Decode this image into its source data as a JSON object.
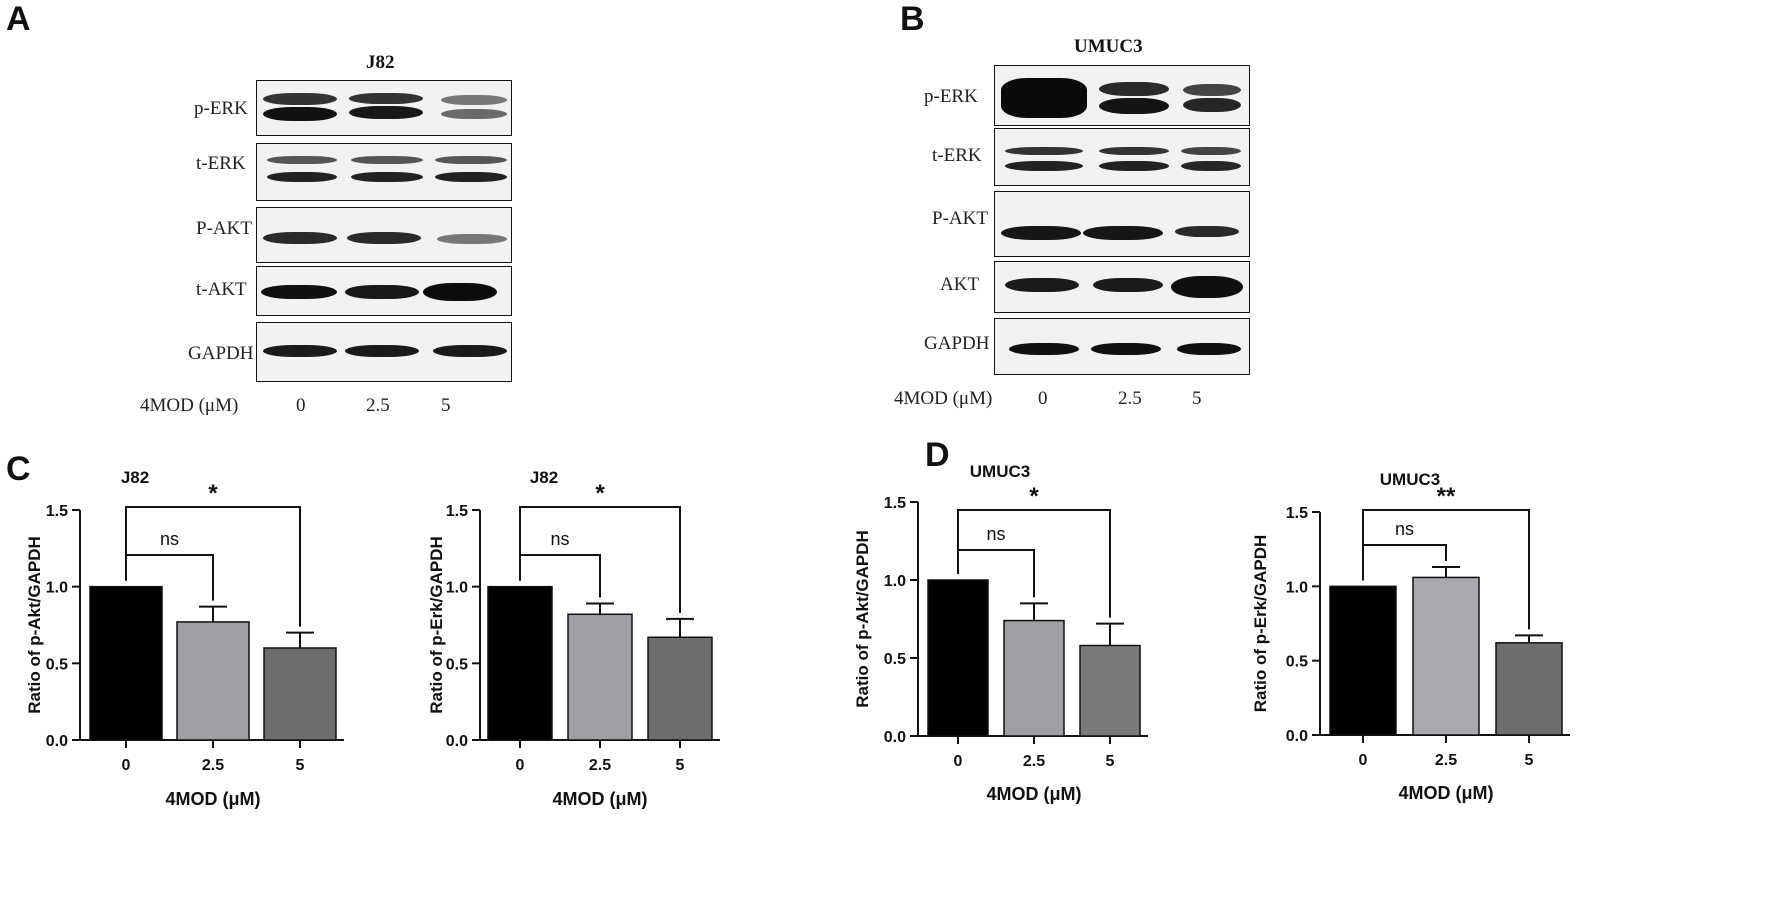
{
  "panels": {
    "A": "A",
    "B": "B",
    "C": "C",
    "D": "D"
  },
  "blots": [
    {
      "id": "A",
      "title": "J82",
      "rows": [
        "p-ERK",
        "t-ERK",
        "P-AKT",
        "t-AKT",
        "GAPDH"
      ],
      "treatment_label": "4MOD (μM)",
      "lanes": [
        "0",
        "2.5",
        "5"
      ]
    },
    {
      "id": "B",
      "title": "UMUC3",
      "rows": [
        "p-ERK",
        "t-ERK",
        "P-AKT",
        "AKT",
        "GAPDH"
      ],
      "treatment_label": "4MOD (μM)",
      "lanes": [
        "0",
        "2.5",
        "5"
      ]
    }
  ],
  "chart_data": [
    {
      "type": "bar",
      "title": "J82",
      "categories": [
        "0",
        "2.5",
        "5"
      ],
      "values": [
        1.0,
        0.77,
        0.6
      ],
      "errors": [
        0,
        0.1,
        0.1
      ],
      "colors": [
        "#000000",
        "#9e9ea3",
        "#6d6d6d"
      ],
      "xlabel": "4MOD (μM)",
      "ylabel": "Ratio of p-Akt/GAPDH",
      "ylim": [
        0,
        1.5
      ],
      "yticks": [
        "0.0",
        "0.5",
        "1.0",
        "1.5"
      ],
      "significance": [
        {
          "from": 0,
          "to": 1,
          "label": "ns"
        },
        {
          "from": 0,
          "to": 2,
          "label": "*"
        }
      ]
    },
    {
      "type": "bar",
      "title": "J82",
      "categories": [
        "0",
        "2.5",
        "5"
      ],
      "values": [
        1.0,
        0.82,
        0.67
      ],
      "errors": [
        0,
        0.07,
        0.12
      ],
      "colors": [
        "#000000",
        "#9e9ea3",
        "#6d6d6d"
      ],
      "xlabel": "4MOD (μM)",
      "ylabel": "Ratio of p-Erk/GAPDH",
      "ylim": [
        0,
        1.5
      ],
      "yticks": [
        "0.0",
        "0.5",
        "1.0",
        "1.5"
      ],
      "significance": [
        {
          "from": 0,
          "to": 1,
          "label": "ns"
        },
        {
          "from": 0,
          "to": 2,
          "label": "*"
        }
      ]
    },
    {
      "type": "bar",
      "title": "UMUC3",
      "categories": [
        "0",
        "2.5",
        "5"
      ],
      "values": [
        1.0,
        0.74,
        0.58
      ],
      "errors": [
        0,
        0.11,
        0.14
      ],
      "colors": [
        "#000000",
        "#9e9ea3",
        "#7a7a7a"
      ],
      "xlabel": "4MOD (μM)",
      "ylabel": "Ratio of p-Akt/GAPDH",
      "ylim": [
        0,
        1.5
      ],
      "yticks": [
        "0.0",
        "0.5",
        "1.0",
        "1.5"
      ],
      "significance": [
        {
          "from": 0,
          "to": 1,
          "label": "ns"
        },
        {
          "from": 0,
          "to": 2,
          "label": "*"
        }
      ]
    },
    {
      "type": "bar",
      "title": "UMUC3",
      "categories": [
        "0",
        "2.5",
        "5"
      ],
      "values": [
        1.0,
        1.06,
        0.62
      ],
      "errors": [
        0,
        0.07,
        0.05
      ],
      "colors": [
        "#000000",
        "#a9a9ad",
        "#6d6d6d"
      ],
      "xlabel": "4MOD (μM)",
      "ylabel": "Ratio of p-Erk/GAPDH",
      "ylim": [
        0,
        1.5
      ],
      "yticks": [
        "0.0",
        "0.5",
        "1.0",
        "1.5"
      ],
      "significance": [
        {
          "from": 0,
          "to": 1,
          "label": "ns"
        },
        {
          "from": 0,
          "to": 2,
          "label": "**"
        }
      ]
    }
  ]
}
